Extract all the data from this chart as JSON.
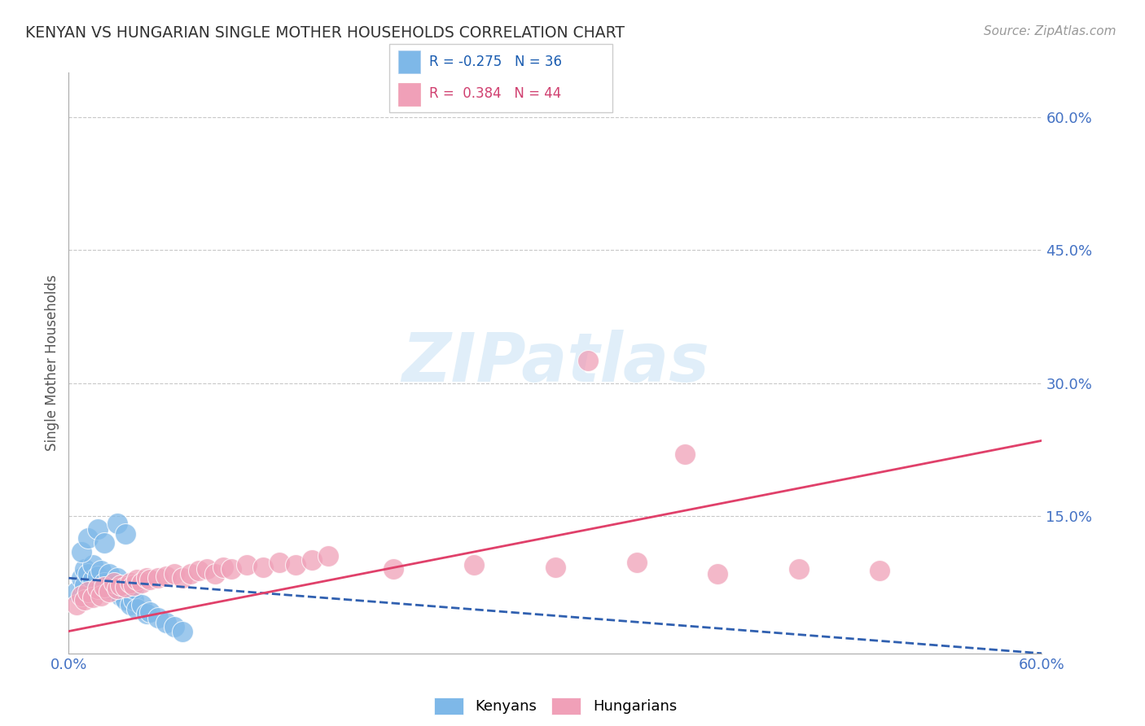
{
  "title": "KENYAN VS HUNGARIAN SINGLE MOTHER HOUSEHOLDS CORRELATION CHART",
  "source": "Source: ZipAtlas.com",
  "ylabel": "Single Mother Households",
  "xlim": [
    0.0,
    0.6
  ],
  "ylim": [
    -0.005,
    0.65
  ],
  "yticks": [
    0.15,
    0.3,
    0.45,
    0.6
  ],
  "ytick_labels": [
    "15.0%",
    "30.0%",
    "45.0%",
    "60.0%"
  ],
  "xticks": [
    0.0,
    0.6
  ],
  "xtick_labels": [
    "0.0%",
    "60.0%"
  ],
  "kenyan_R": -0.275,
  "kenyan_N": 36,
  "hungarian_R": 0.384,
  "hungarian_N": 44,
  "kenyan_color": "#7eb8e8",
  "hungarian_color": "#f0a0b8",
  "kenyan_line_color": "#3060b0",
  "hungarian_line_color": "#e0406a",
  "background_color": "#ffffff",
  "kenyan_x": [
    0.005,
    0.008,
    0.01,
    0.01,
    0.012,
    0.015,
    0.015,
    0.018,
    0.02,
    0.02,
    0.022,
    0.025,
    0.025,
    0.028,
    0.03,
    0.03,
    0.032,
    0.035,
    0.035,
    0.038,
    0.04,
    0.04,
    0.042,
    0.045,
    0.048,
    0.05,
    0.055,
    0.06,
    0.065,
    0.07,
    0.008,
    0.012,
    0.018,
    0.022,
    0.03,
    0.035
  ],
  "kenyan_y": [
    0.065,
    0.08,
    0.072,
    0.09,
    0.085,
    0.078,
    0.095,
    0.082,
    0.07,
    0.088,
    0.075,
    0.068,
    0.085,
    0.072,
    0.065,
    0.08,
    0.06,
    0.055,
    0.07,
    0.05,
    0.055,
    0.068,
    0.045,
    0.05,
    0.04,
    0.042,
    0.035,
    0.03,
    0.025,
    0.02,
    0.11,
    0.125,
    0.135,
    0.12,
    0.142,
    0.13
  ],
  "hungarian_x": [
    0.005,
    0.008,
    0.01,
    0.012,
    0.015,
    0.018,
    0.02,
    0.022,
    0.025,
    0.028,
    0.03,
    0.032,
    0.035,
    0.038,
    0.04,
    0.042,
    0.045,
    0.048,
    0.05,
    0.055,
    0.06,
    0.065,
    0.07,
    0.075,
    0.08,
    0.085,
    0.09,
    0.095,
    0.1,
    0.11,
    0.12,
    0.13,
    0.14,
    0.15,
    0.16,
    0.2,
    0.25,
    0.3,
    0.35,
    0.4,
    0.45,
    0.5,
    0.32,
    0.38
  ],
  "hungarian_y": [
    0.05,
    0.06,
    0.055,
    0.065,
    0.058,
    0.068,
    0.06,
    0.07,
    0.065,
    0.075,
    0.068,
    0.072,
    0.07,
    0.075,
    0.072,
    0.078,
    0.075,
    0.08,
    0.078,
    0.08,
    0.082,
    0.085,
    0.08,
    0.085,
    0.088,
    0.09,
    0.085,
    0.092,
    0.09,
    0.095,
    0.092,
    0.098,
    0.095,
    0.1,
    0.105,
    0.09,
    0.095,
    0.092,
    0.098,
    0.085,
    0.09,
    0.088,
    0.325,
    0.22
  ],
  "kenyan_trend_x0": 0.0,
  "kenyan_trend_y0": 0.08,
  "kenyan_trend_x1": 0.6,
  "kenyan_trend_y1": -0.005,
  "hungarian_trend_x0": 0.0,
  "hungarian_trend_y0": 0.02,
  "hungarian_trend_x1": 0.6,
  "hungarian_trend_y1": 0.235
}
